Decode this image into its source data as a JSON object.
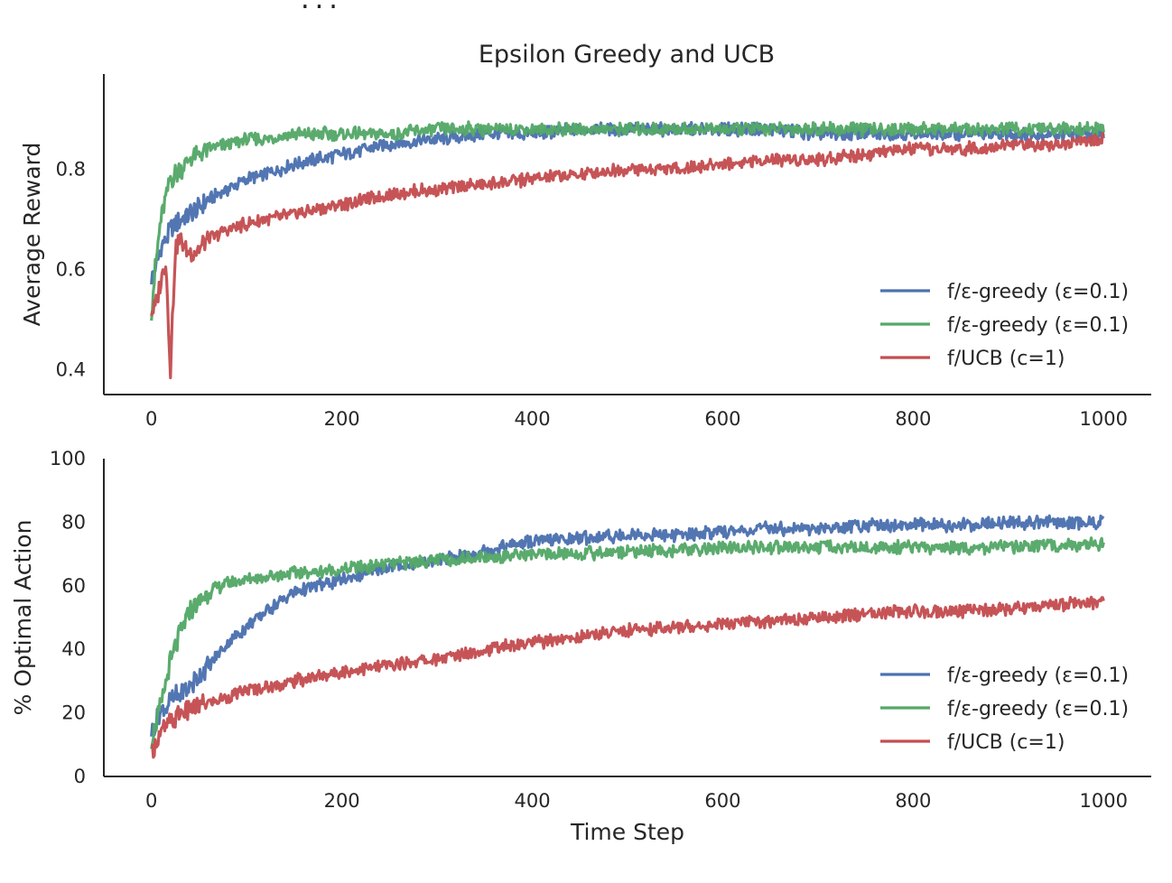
{
  "figure": {
    "title": "Epsilon Greedy and UCB",
    "top_cut_text": "..."
  },
  "colors": {
    "blue": "#4c72b0",
    "green": "#55a868",
    "red": "#c44e52",
    "axis": "#262626"
  },
  "chart_data": [
    {
      "type": "line",
      "title": "Epsilon Greedy and UCB",
      "xlabel": "",
      "ylabel": "Average Reward",
      "xlim": [
        -50,
        1050
      ],
      "ylim": [
        0.35,
        0.99
      ],
      "xticks": [
        0,
        200,
        400,
        600,
        800,
        1000
      ],
      "xtick_labels": [
        "0",
        "200",
        "400",
        "600",
        "800",
        "1000"
      ],
      "yticks": [
        0.4,
        0.6,
        0.8
      ],
      "ytick_labels": [
        "0.4",
        "0.6",
        "0.8"
      ],
      "grid": false,
      "legend_position": "lower-right",
      "series": [
        {
          "name": "f/ε-greedy (ε=0.1)",
          "color": "#4c72b0",
          "x": [
            0,
            10,
            20,
            30,
            40,
            50,
            60,
            80,
            100,
            120,
            150,
            200,
            250,
            300,
            350,
            400,
            450,
            500,
            550,
            600,
            650,
            700,
            750,
            800,
            850,
            900,
            950,
            1000
          ],
          "y": [
            0.58,
            0.64,
            0.68,
            0.7,
            0.71,
            0.72,
            0.74,
            0.76,
            0.78,
            0.79,
            0.81,
            0.83,
            0.85,
            0.86,
            0.87,
            0.87,
            0.88,
            0.88,
            0.88,
            0.88,
            0.88,
            0.87,
            0.87,
            0.87,
            0.87,
            0.87,
            0.87,
            0.87
          ]
        },
        {
          "name": "f/ε-greedy (ε=0.1)",
          "color": "#55a868",
          "x": [
            0,
            5,
            10,
            20,
            30,
            40,
            50,
            60,
            80,
            100,
            120,
            150,
            200,
            250,
            300,
            350,
            400,
            450,
            500,
            550,
            600,
            650,
            700,
            750,
            800,
            850,
            900,
            950,
            1000
          ],
          "y": [
            0.52,
            0.62,
            0.7,
            0.78,
            0.8,
            0.82,
            0.83,
            0.84,
            0.85,
            0.86,
            0.86,
            0.87,
            0.87,
            0.87,
            0.88,
            0.88,
            0.88,
            0.88,
            0.88,
            0.88,
            0.88,
            0.88,
            0.88,
            0.88,
            0.88,
            0.88,
            0.88,
            0.88,
            0.88
          ]
        },
        {
          "name": "f/UCB (c=1)",
          "color": "#c44e52",
          "x": [
            0,
            5,
            10,
            15,
            20,
            25,
            30,
            40,
            50,
            60,
            80,
            100,
            120,
            150,
            200,
            250,
            300,
            350,
            400,
            450,
            500,
            550,
            600,
            650,
            700,
            750,
            800,
            850,
            900,
            950,
            1000
          ],
          "y": [
            0.52,
            0.53,
            0.58,
            0.62,
            0.4,
            0.64,
            0.66,
            0.63,
            0.64,
            0.66,
            0.68,
            0.69,
            0.7,
            0.71,
            0.73,
            0.75,
            0.76,
            0.77,
            0.78,
            0.79,
            0.8,
            0.8,
            0.81,
            0.82,
            0.82,
            0.83,
            0.84,
            0.84,
            0.85,
            0.85,
            0.86
          ]
        }
      ]
    },
    {
      "type": "line",
      "title": "",
      "xlabel": "Time Step",
      "ylabel": "% Optimal Action",
      "xlim": [
        -50,
        1050
      ],
      "ylim": [
        0,
        100
      ],
      "xticks": [
        0,
        200,
        400,
        600,
        800,
        1000
      ],
      "xtick_labels": [
        "0",
        "200",
        "400",
        "600",
        "800",
        "1000"
      ],
      "yticks": [
        0,
        20,
        40,
        60,
        80,
        100
      ],
      "ytick_labels": [
        "0",
        "20",
        "40",
        "60",
        "80",
        "100"
      ],
      "grid": false,
      "legend_position": "lower-right",
      "series": [
        {
          "name": "f/ε-greedy (ε=0.1)",
          "color": "#4c72b0",
          "x": [
            0,
            10,
            20,
            40,
            60,
            80,
            100,
            120,
            150,
            200,
            250,
            300,
            350,
            400,
            450,
            500,
            550,
            600,
            650,
            700,
            750,
            800,
            850,
            900,
            950,
            1000
          ],
          "y": [
            14,
            20,
            24,
            28,
            35,
            42,
            47,
            52,
            58,
            62,
            66,
            68,
            71,
            74,
            75,
            76,
            76,
            77,
            78,
            78,
            79,
            79,
            79,
            80,
            80,
            80
          ]
        },
        {
          "name": "f/ε-greedy (ε=0.1)",
          "color": "#55a868",
          "x": [
            0,
            10,
            20,
            30,
            40,
            50,
            60,
            80,
            100,
            120,
            150,
            200,
            250,
            300,
            350,
            400,
            450,
            500,
            550,
            600,
            650,
            700,
            750,
            800,
            850,
            900,
            950,
            1000
          ],
          "y": [
            12,
            22,
            36,
            45,
            52,
            55,
            58,
            61,
            62,
            63,
            64,
            65,
            67,
            68,
            69,
            70,
            70,
            71,
            71,
            72,
            72,
            72,
            72,
            72,
            72,
            72,
            73,
            73
          ]
        },
        {
          "name": "f/UCB (c=1)",
          "color": "#c44e52",
          "x": [
            0,
            10,
            20,
            30,
            40,
            50,
            60,
            80,
            100,
            120,
            150,
            200,
            250,
            300,
            350,
            400,
            450,
            500,
            550,
            600,
            650,
            700,
            750,
            800,
            850,
            900,
            950,
            1000
          ],
          "y": [
            8,
            14,
            17,
            20,
            21,
            22,
            23,
            25,
            27,
            28,
            30,
            33,
            35,
            37,
            40,
            42,
            44,
            46,
            47,
            48,
            49,
            50,
            51,
            52,
            52,
            53,
            54,
            55
          ]
        }
      ]
    }
  ]
}
